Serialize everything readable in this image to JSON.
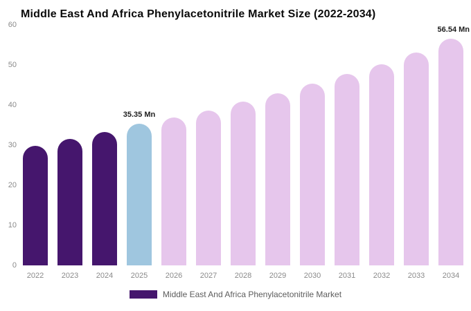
{
  "chart_data": {
    "type": "bar",
    "title": "Middle East And Africa Phenylacetonitrile Market Size (2022-2034)",
    "categories": [
      "2022",
      "2023",
      "2024",
      "2025",
      "2026",
      "2027",
      "2028",
      "2029",
      "2030",
      "2031",
      "2032",
      "2033",
      "2034"
    ],
    "values": [
      29.9,
      31.6,
      33.3,
      35.35,
      36.9,
      38.7,
      40.8,
      42.9,
      45.3,
      47.8,
      50.2,
      53.1,
      56.54
    ],
    "bar_colors": [
      "#45166d",
      "#45166d",
      "#45166d",
      "#9fc6df",
      "#e6c6ec",
      "#e6c6ec",
      "#e6c6ec",
      "#e6c6ec",
      "#e6c6ec",
      "#e6c6ec",
      "#e6c6ec",
      "#e6c6ec",
      "#e6c6ec"
    ],
    "xlabel": "",
    "ylabel": "",
    "ylim": [
      0,
      60
    ],
    "yticks": [
      0,
      10,
      20,
      30,
      40,
      50,
      60
    ],
    "grid": false,
    "legend_position": "bottom",
    "annotations": [
      {
        "category": "2025",
        "text": "35.35 Mn"
      },
      {
        "category": "2034",
        "text": "56.54 Mn"
      }
    ],
    "legend": [
      {
        "label": "Middle East And Africa Phenylacetonitrile Market",
        "color": "#45166d"
      }
    ]
  },
  "colors": {
    "background": "#ffffff",
    "title_text": "#0a0a0a",
    "axis_text": "#8a8a8a",
    "annotation_text": "#1c1c1c",
    "dark_purple": "#45166d",
    "highlight_blue": "#9fc6df",
    "light_pink": "#e6c6ec"
  }
}
